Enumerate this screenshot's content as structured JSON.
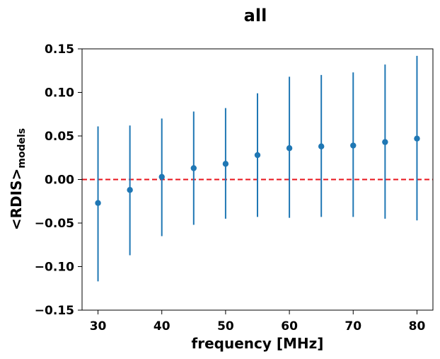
{
  "chart_data": {
    "type": "scatter",
    "title": "all",
    "xlabel": "frequency [MHz]",
    "ylabel": "<RDIS>",
    "ylabel_subscript": "models",
    "xlim": [
      27.5,
      82.5
    ],
    "ylim": [
      -0.15,
      0.15
    ],
    "xticks": [
      30,
      40,
      50,
      60,
      70,
      80
    ],
    "yticks": [
      -0.15,
      -0.1,
      -0.05,
      0.0,
      0.05,
      0.1,
      0.15
    ],
    "ytick_labels": [
      "−0.15",
      "−0.10",
      "−0.05",
      "0.00",
      "0.05",
      "0.10",
      "0.15"
    ],
    "grid": false,
    "reference_line": {
      "y": 0.0,
      "color": "#e8141c",
      "style": "dashed"
    },
    "series": [
      {
        "color": "#1f77b4",
        "points": [
          {
            "x": 30,
            "y": -0.027,
            "ylow": -0.117,
            "yhigh": 0.061
          },
          {
            "x": 35,
            "y": -0.012,
            "ylow": -0.087,
            "yhigh": 0.062
          },
          {
            "x": 40,
            "y": 0.003,
            "ylow": -0.065,
            "yhigh": 0.07
          },
          {
            "x": 45,
            "y": 0.013,
            "ylow": -0.052,
            "yhigh": 0.078
          },
          {
            "x": 50,
            "y": 0.018,
            "ylow": -0.045,
            "yhigh": 0.082
          },
          {
            "x": 55,
            "y": 0.028,
            "ylow": -0.043,
            "yhigh": 0.099
          },
          {
            "x": 60,
            "y": 0.036,
            "ylow": -0.044,
            "yhigh": 0.118
          },
          {
            "x": 65,
            "y": 0.038,
            "ylow": -0.043,
            "yhigh": 0.12
          },
          {
            "x": 70,
            "y": 0.039,
            "ylow": -0.043,
            "yhigh": 0.123
          },
          {
            "x": 75,
            "y": 0.043,
            "ylow": -0.045,
            "yhigh": 0.132
          },
          {
            "x": 80,
            "y": 0.047,
            "ylow": -0.047,
            "yhigh": 0.142
          }
        ]
      }
    ]
  }
}
